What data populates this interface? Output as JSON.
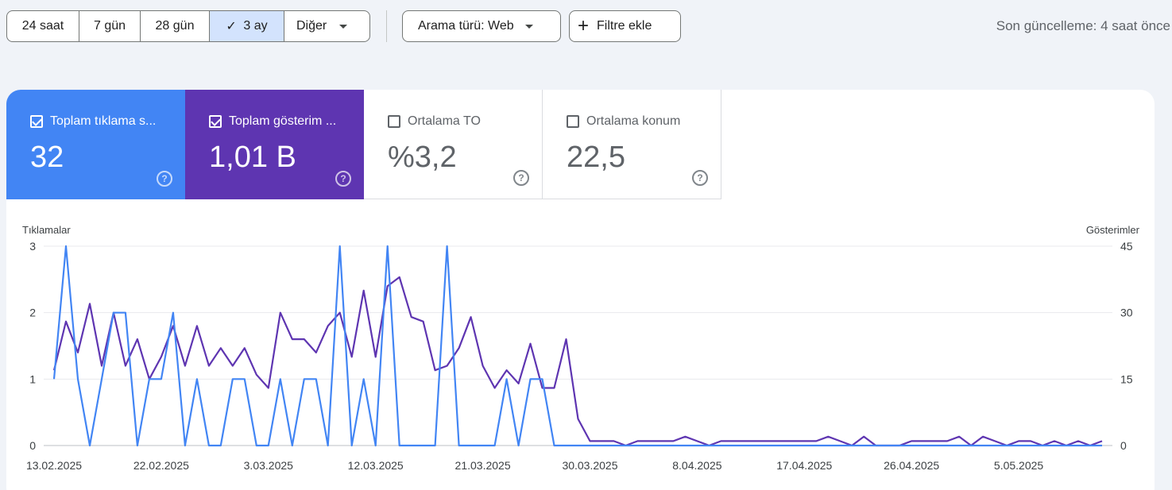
{
  "toolbar": {
    "ranges": [
      "24 saat",
      "7 gün",
      "28 gün",
      "3 ay"
    ],
    "active_range": "3 ay",
    "other": "Diğer",
    "search_type": "Arama türü: Web",
    "add_filter": "Filtre ekle",
    "last_update": "Son güncelleme: 4 saat önce"
  },
  "metrics": [
    {
      "label": "Toplam tıklama s...",
      "value": "32",
      "checked": true,
      "color": "#4285f4"
    },
    {
      "label": "Toplam gösterim ...",
      "value": "1,01 B",
      "checked": true,
      "color": "#5e35b1"
    },
    {
      "label": "Ortalama TO",
      "value": "%3,2",
      "checked": false
    },
    {
      "label": "Ortalama konum",
      "value": "22,5",
      "checked": false
    }
  ],
  "chart_data": {
    "type": "line",
    "left_axis_title": "Tıklamalar",
    "right_axis_title": "Gösterimler",
    "left_ticks": [
      "0",
      "1",
      "2",
      "3"
    ],
    "right_ticks": [
      "0",
      "15",
      "30",
      "45"
    ],
    "left_range": [
      0,
      3
    ],
    "right_range": [
      0,
      45
    ],
    "x_labels": [
      "13.02.2025",
      "22.02.2025",
      "3.03.2025",
      "12.03.2025",
      "21.03.2025",
      "30.03.2025",
      "8.04.2025",
      "17.04.2025",
      "26.04.2025",
      "5.05.2025"
    ],
    "x_label_indices": [
      0,
      9,
      18,
      27,
      36,
      45,
      54,
      63,
      72,
      81
    ],
    "series": [
      {
        "name": "Tıklamalar",
        "axis": "left",
        "color": "#4285f4",
        "values": [
          1,
          3,
          1,
          0,
          1,
          2,
          2,
          0,
          1,
          1,
          2,
          0,
          1,
          0,
          0,
          1,
          1,
          0,
          0,
          1,
          0,
          1,
          1,
          0,
          3,
          0,
          1,
          0,
          3,
          0,
          0,
          0,
          0,
          3,
          0,
          0,
          0,
          0,
          1,
          0,
          1,
          1,
          0,
          0,
          0,
          0,
          0,
          0,
          0,
          0,
          0,
          0,
          0,
          0,
          0,
          0,
          0,
          0,
          0,
          0,
          0,
          0,
          0,
          0,
          0,
          0,
          0,
          0,
          0,
          0,
          0,
          0,
          0,
          0,
          0,
          0,
          0,
          0,
          0,
          0,
          0,
          0,
          0,
          0,
          0,
          0,
          0,
          0,
          0
        ]
      },
      {
        "name": "Gösterimler",
        "axis": "right",
        "color": "#5e35b1",
        "values": [
          17,
          28,
          21,
          32,
          18,
          30,
          18,
          24,
          15,
          20,
          27,
          18,
          27,
          18,
          22,
          18,
          22,
          16,
          13,
          30,
          24,
          24,
          21,
          27,
          30,
          20,
          35,
          20,
          36,
          38,
          29,
          28,
          17,
          18,
          22,
          29,
          18,
          13,
          17,
          14,
          23,
          13,
          13,
          24,
          6,
          1,
          1,
          1,
          0,
          1,
          1,
          1,
          1,
          2,
          1,
          0,
          1,
          1,
          1,
          1,
          1,
          1,
          1,
          1,
          1,
          2,
          1,
          0,
          2,
          0,
          0,
          0,
          1,
          1,
          1,
          1,
          2,
          0,
          2,
          1,
          0,
          1,
          1,
          0,
          1,
          0,
          1,
          0,
          1
        ]
      }
    ]
  }
}
